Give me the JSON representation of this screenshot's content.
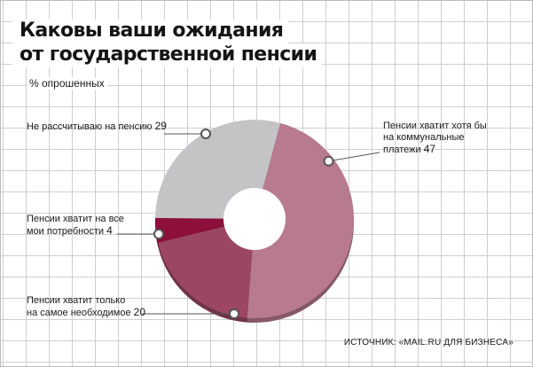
{
  "title_lines": [
    "Каковы ваши ожидания",
    "от государственной пенсии"
  ],
  "subtitle": "% опрошенных",
  "source": "ИСТОЧНИК: «MAIL.RU ДЛЯ БИЗНЕСА»",
  "chart_data": {
    "type": "pie",
    "donut": true,
    "title": "Каковы ваши ожидания от государственной пенсии",
    "unit": "% опрошенных",
    "slices": [
      {
        "label_lines": [
          "Пенсии хватит хотя бы",
          "на коммунальные",
          "платежи"
        ],
        "value": 47,
        "value_text": "47",
        "color": "#b87a8e"
      },
      {
        "label_lines": [
          "Пенсии хватит только",
          "на самое необходимое"
        ],
        "value": 20,
        "value_text": "20",
        "color": "#9b4763"
      },
      {
        "label_lines": [
          "Пенсии хватит на все",
          "мои потребности"
        ],
        "value": 4,
        "value_text": "4",
        "color": "#8c0f3c"
      },
      {
        "label_lines": [
          "Не рассчитываю на пенсию"
        ],
        "value": 29,
        "value_text": "29",
        "color": "#c4c4c6"
      }
    ]
  }
}
